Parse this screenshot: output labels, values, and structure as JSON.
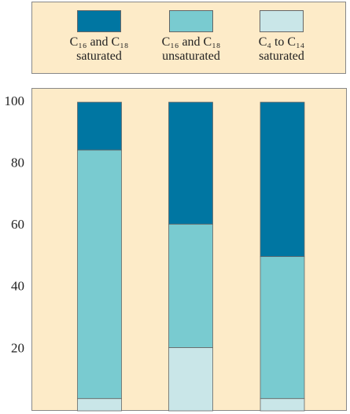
{
  "chart_data": {
    "type": "stacked_bar",
    "categories": [
      null,
      null,
      null
    ],
    "series": [
      {
        "name": "C₄ to C₁₄ saturated",
        "color": "#c9e6e8",
        "values": [
          4,
          20.5,
          4
        ]
      },
      {
        "name": "C₁₆ and C₁₈ unsaturated",
        "color": "#79cbd0",
        "values": [
          80.5,
          40,
          46
        ]
      },
      {
        "name": "C₁₆ and C₁₈ saturated",
        "color": "#0076a2",
        "values": [
          15.5,
          39.5,
          50
        ]
      }
    ],
    "legend_order": [
      2,
      1,
      0
    ],
    "ylim": [
      0,
      104.6
    ],
    "yticks": [
      20,
      40,
      60,
      80,
      100
    ],
    "grid": false
  }
}
